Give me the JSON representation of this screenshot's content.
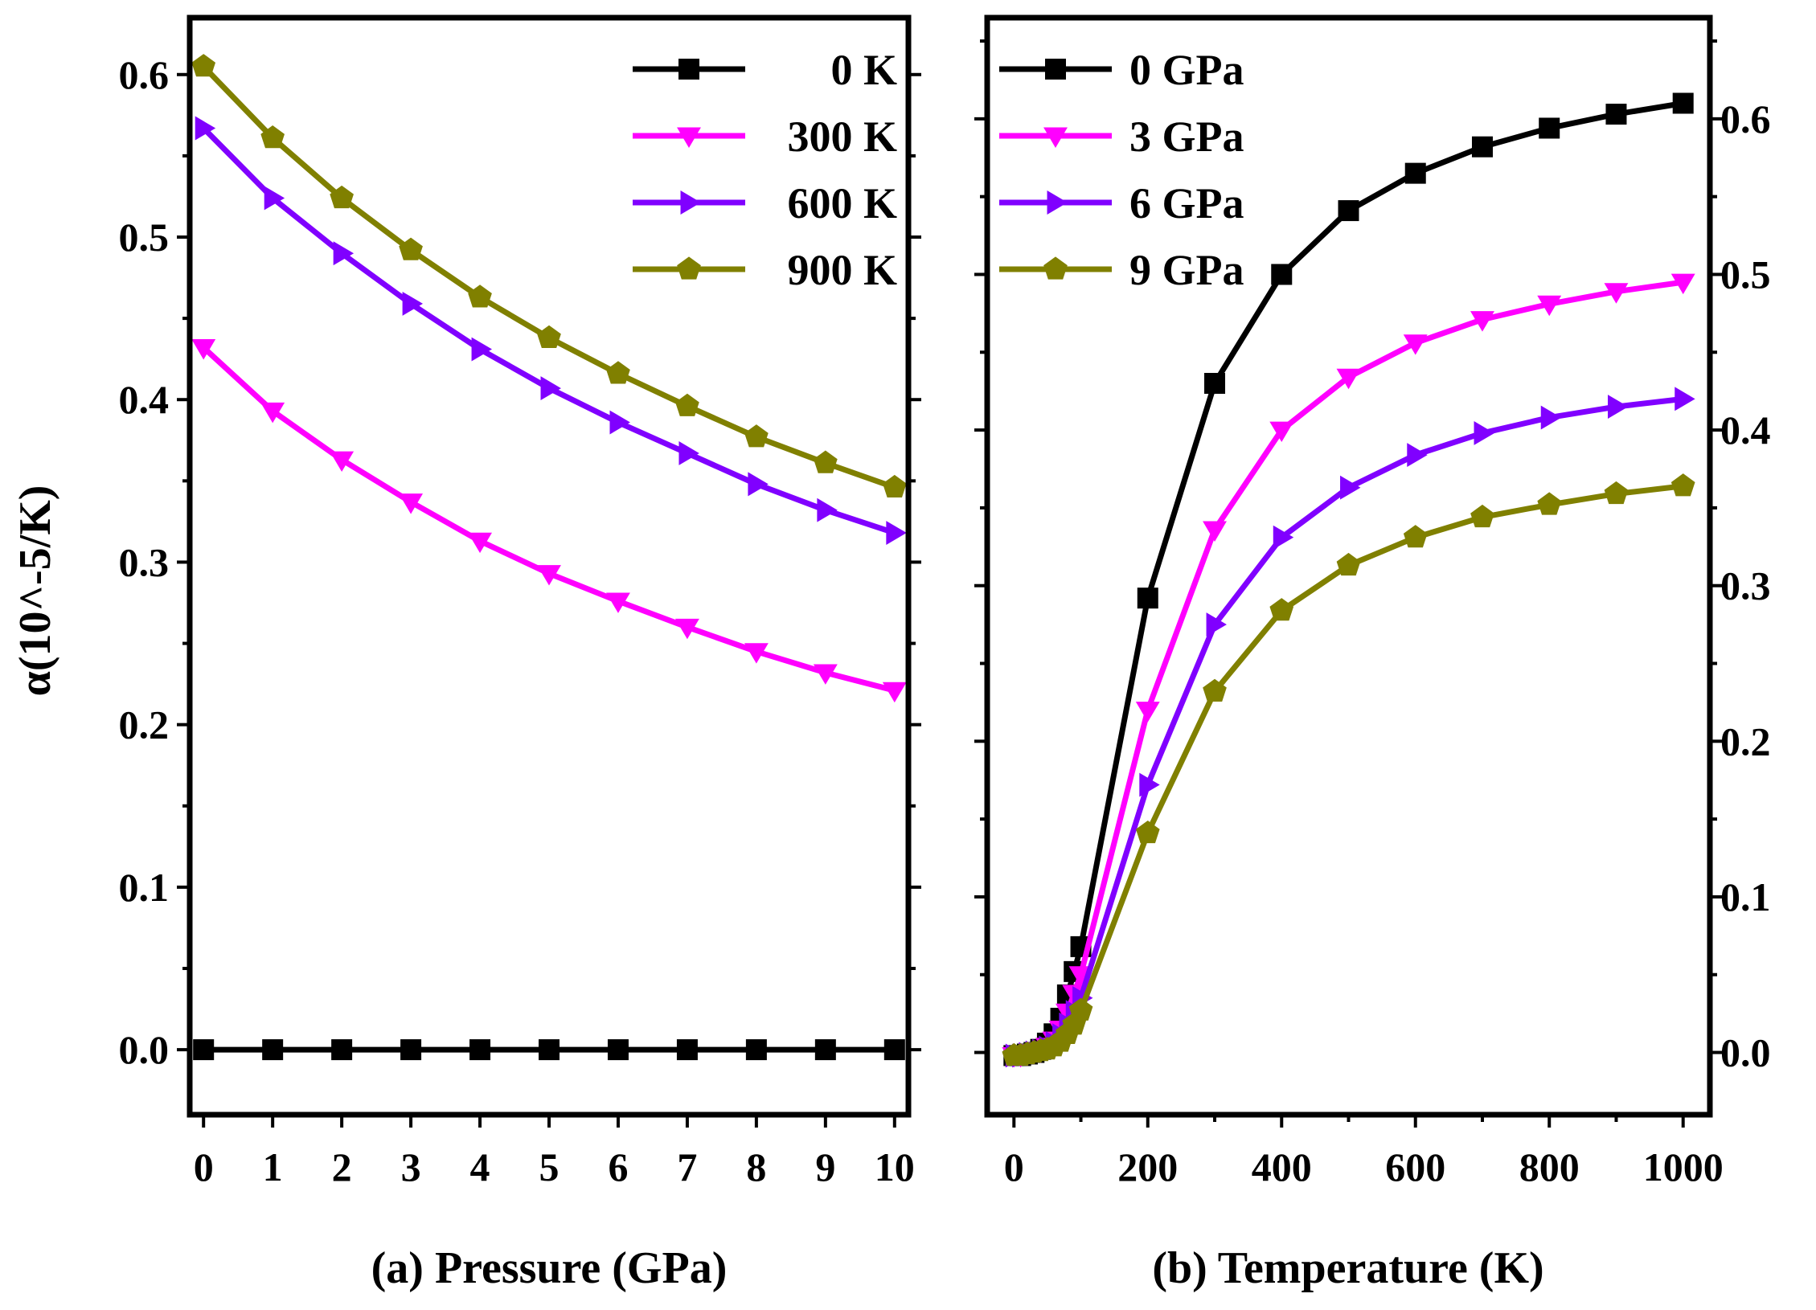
{
  "chart_data": [
    {
      "type": "line",
      "panel": "a",
      "xlabel": "(a) Pressure (GPa)",
      "ylabel": "α(10^-5/K)",
      "xlim": [
        -0.2,
        10.2
      ],
      "ylim": [
        -0.04,
        0.635
      ],
      "x": [
        0,
        1,
        2,
        3,
        4,
        5,
        6,
        7,
        8,
        9,
        10
      ],
      "xticks": [
        0,
        1,
        2,
        3,
        4,
        5,
        6,
        7,
        8,
        9,
        10
      ],
      "xtick_labels": [
        "0",
        "1",
        "2",
        "3",
        "4",
        "5",
        "6",
        "7",
        "8",
        "9",
        "10"
      ],
      "yticks": [
        0.0,
        0.1,
        0.2,
        0.3,
        0.4,
        0.5,
        0.6
      ],
      "ytick_labels": [
        "0.0",
        "0.1",
        "0.2",
        "0.3",
        "0.4",
        "0.5",
        "0.6"
      ],
      "legend_position": "top-right",
      "series": [
        {
          "name": "0 K",
          "color": "#000000",
          "marker": "square",
          "values": [
            0,
            0,
            0,
            0,
            0,
            0,
            0,
            0,
            0,
            0,
            0
          ]
        },
        {
          "name": "300 K",
          "color": "#ff00ff",
          "marker": "triangle-down",
          "values": [
            0.432,
            0.393,
            0.363,
            0.337,
            0.313,
            0.293,
            0.276,
            0.26,
            0.245,
            0.232,
            0.221
          ]
        },
        {
          "name": "600 K",
          "color": "#8000ff",
          "marker": "triangle-right",
          "values": [
            0.567,
            0.524,
            0.49,
            0.459,
            0.431,
            0.407,
            0.386,
            0.367,
            0.348,
            0.332,
            0.318
          ]
        },
        {
          "name": "900 K",
          "color": "#808000",
          "marker": "pentagon",
          "values": [
            0.605,
            0.561,
            0.524,
            0.492,
            0.463,
            0.438,
            0.416,
            0.396,
            0.377,
            0.361,
            0.346
          ]
        }
      ]
    },
    {
      "type": "line",
      "panel": "b",
      "xlabel": "(b) Temperature (K)",
      "ylabel": "",
      "xlim": [
        -40,
        1040
      ],
      "ylim": [
        -0.04,
        0.665
      ],
      "xticks": [
        0,
        200,
        400,
        600,
        800,
        1000
      ],
      "xtick_labels": [
        "0",
        "200",
        "400",
        "600",
        "800",
        "1000"
      ],
      "yticks": [
        0.0,
        0.1,
        0.2,
        0.3,
        0.4,
        0.5,
        0.6
      ],
      "ytick_labels": [
        "0.0",
        "0.1",
        "0.2",
        "0.3",
        "0.4",
        "0.5",
        "0.6"
      ],
      "legend_position": "top-left",
      "series": [
        {
          "name": "0 GPa",
          "color": "#000000",
          "marker": "square",
          "x": [
            0,
            10,
            20,
            30,
            40,
            50,
            60,
            70,
            80,
            90,
            100,
            200,
            300,
            400,
            500,
            600,
            700,
            800,
            900,
            1000
          ],
          "values": [
            -0.002,
            -0.002,
            -0.001,
            0.0,
            0.002,
            0.006,
            0.012,
            0.022,
            0.037,
            0.052,
            0.068,
            0.292,
            0.43,
            0.5,
            0.541,
            0.565,
            0.582,
            0.594,
            0.603,
            0.61
          ]
        },
        {
          "name": "3 GPa",
          "color": "#ff00ff",
          "marker": "triangle-down",
          "x": [
            0,
            10,
            20,
            30,
            40,
            50,
            60,
            70,
            80,
            90,
            100,
            200,
            300,
            400,
            500,
            600,
            700,
            800,
            900,
            1000
          ],
          "values": [
            -0.002,
            -0.002,
            -0.001,
            0.0,
            0.001,
            0.004,
            0.008,
            0.015,
            0.026,
            0.038,
            0.05,
            0.22,
            0.336,
            0.4,
            0.434,
            0.456,
            0.471,
            0.481,
            0.489,
            0.495
          ]
        },
        {
          "name": "6 GPa",
          "color": "#8000ff",
          "marker": "triangle-right",
          "x": [
            0,
            10,
            20,
            30,
            40,
            50,
            60,
            70,
            80,
            90,
            100,
            200,
            300,
            400,
            500,
            600,
            700,
            800,
            900,
            1000
          ],
          "values": [
            -0.002,
            -0.002,
            -0.001,
            0.0,
            0.001,
            0.003,
            0.006,
            0.011,
            0.018,
            0.026,
            0.035,
            0.172,
            0.275,
            0.331,
            0.363,
            0.384,
            0.398,
            0.408,
            0.415,
            0.42
          ]
        },
        {
          "name": "9 GPa",
          "color": "#808000",
          "marker": "pentagon",
          "x": [
            0,
            10,
            20,
            30,
            40,
            50,
            60,
            70,
            80,
            90,
            100,
            200,
            300,
            400,
            500,
            600,
            700,
            800,
            900,
            1000
          ],
          "values": [
            -0.002,
            -0.002,
            -0.001,
            0.0,
            0.001,
            0.002,
            0.004,
            0.007,
            0.012,
            0.018,
            0.027,
            0.141,
            0.232,
            0.284,
            0.313,
            0.331,
            0.344,
            0.352,
            0.359,
            0.364
          ]
        }
      ]
    }
  ]
}
